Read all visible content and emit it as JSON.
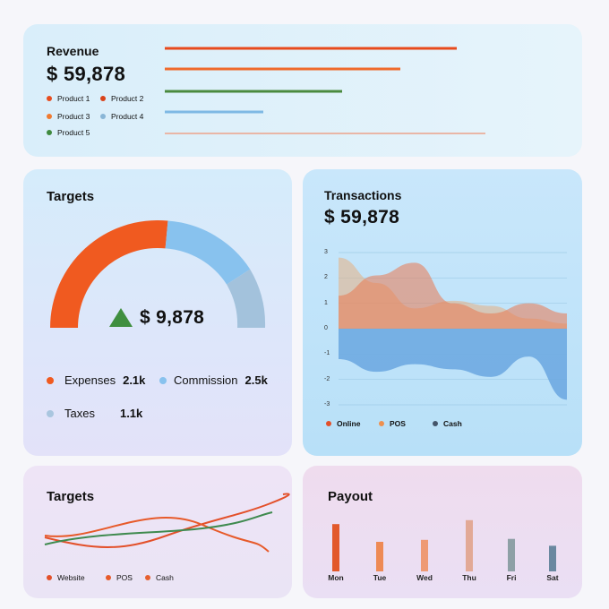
{
  "revenue": {
    "title": "Revenue",
    "amount": "$ 59,878",
    "legend": [
      {
        "label": "Product 1",
        "color": "#e74c1e"
      },
      {
        "label": "Product 2",
        "color": "#d9431a"
      },
      {
        "label": "Product 3",
        "color": "#f07a30"
      },
      {
        "label": "Product 4",
        "color": "#8ab6d6"
      },
      {
        "label": "Product 5",
        "color": "#3f8a3f"
      }
    ],
    "bars": [
      {
        "color": "#e84a1c"
      },
      {
        "color": "#ef6a2c"
      },
      {
        "color": "#4a8a3e"
      },
      {
        "color": "#7fb9e4"
      },
      {
        "color": "#e9b6a6"
      }
    ]
  },
  "targets": {
    "title": "Targets",
    "amount": "$ 9,878",
    "legend": [
      {
        "label": "Expenses",
        "value": "2.1k",
        "color": "#f05a20"
      },
      {
        "label": "Commission",
        "value": "2.5k",
        "color": "#88c2ee"
      },
      {
        "label": "Taxes",
        "value": "1.1k",
        "color": "#a9c6df"
      }
    ],
    "gauge": {
      "expenses": 2.1,
      "commission": 2.5,
      "taxes": 1.1
    }
  },
  "transactions": {
    "title": "Transactions",
    "amount": "$ 59,878",
    "legend": [
      {
        "label": "Online",
        "color": "#e3502a"
      },
      {
        "label": "POS",
        "color": "#ee9050"
      },
      {
        "label": "Cash",
        "color": "#44556a"
      }
    ]
  },
  "chart_data": [
    {
      "type": "area",
      "title": "Transactions",
      "y_ticks": [
        "3",
        "2",
        "1",
        "0",
        "-1",
        "-2",
        "-3"
      ],
      "ylim": [
        -3,
        3
      ],
      "series": [
        {
          "name": "Online",
          "values": [
            1.3,
            2.1,
            2.6,
            1.0,
            0.6,
            1.0,
            0.6
          ]
        },
        {
          "name": "POS",
          "values": [
            2.8,
            1.8,
            0.8,
            1.1,
            0.9,
            0.4,
            0.2
          ]
        },
        {
          "name": "Cash",
          "values": [
            -1.2,
            -1.7,
            -1.4,
            -1.6,
            -1.9,
            -1.1,
            -2.8
          ]
        }
      ]
    },
    {
      "type": "line",
      "title": "Targets",
      "series": [
        {
          "name": "Website",
          "values": [
            1.0,
            0.6,
            0.8,
            1.4,
            2.0,
            3.1
          ]
        },
        {
          "name": "POS",
          "values": [
            2.0,
            1.0,
            1.5,
            2.4,
            1.8,
            0.3
          ]
        },
        {
          "name": "Cash",
          "values": [
            1.0,
            1.4,
            1.6,
            1.8,
            2.1,
            2.7
          ]
        }
      ]
    },
    {
      "type": "bar",
      "title": "Payout",
      "categories": [
        "Mon",
        "Tue",
        "Wed",
        "Thu",
        "Fri",
        "Sat"
      ],
      "values": [
        48,
        30,
        32,
        52,
        33,
        26
      ],
      "colors": [
        "#e2592b",
        "#ee8a55",
        "#ee9a74",
        "#e2a996",
        "#8ea0a6",
        "#6a88a0"
      ]
    }
  ],
  "targets2": {
    "title": "Targets",
    "legend": [
      {
        "label": "Website",
        "color": "#e3502a"
      },
      {
        "label": "POS",
        "color": "#e75a2a"
      },
      {
        "label": "Cash",
        "color": "#e66030"
      }
    ]
  },
  "payout": {
    "title": "Payout"
  }
}
